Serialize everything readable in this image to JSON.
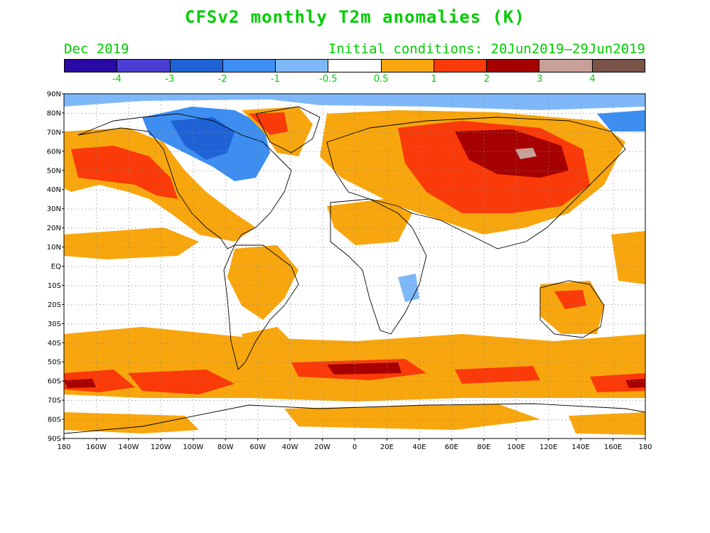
{
  "title": "CFSv2 monthly T2m anomalies (K)",
  "subtitle_left": "Dec 2019",
  "subtitle_right": "Initial conditions: 20Jun2019–29Jun2019",
  "colorbar": {
    "colors": [
      "#2a0aa6",
      "#4a3ed4",
      "#1f62d6",
      "#3d8ef0",
      "#7fb8f8",
      "#ffffff",
      "#f7a60e",
      "#fa3a08",
      "#a60000",
      "#c8a098",
      "#7a5448"
    ],
    "labels": [
      "-4",
      "-3",
      "-2",
      "-1",
      "-0.5",
      "0.5",
      "1",
      "2",
      "3",
      "4"
    ]
  },
  "lat_labels": [
    "90N",
    "80N",
    "70N",
    "60N",
    "50N",
    "40N",
    "30N",
    "20N",
    "10N",
    "EQ",
    "10S",
    "20S",
    "30S",
    "40S",
    "50S",
    "60S",
    "70S",
    "80S",
    "90S"
  ],
  "lon_labels": [
    "180",
    "160W",
    "140W",
    "120W",
    "100W",
    "80W",
    "60W",
    "40W",
    "20W",
    "0",
    "20E",
    "40E",
    "60E",
    "80E",
    "100E",
    "120E",
    "140E",
    "160E",
    "180"
  ]
}
